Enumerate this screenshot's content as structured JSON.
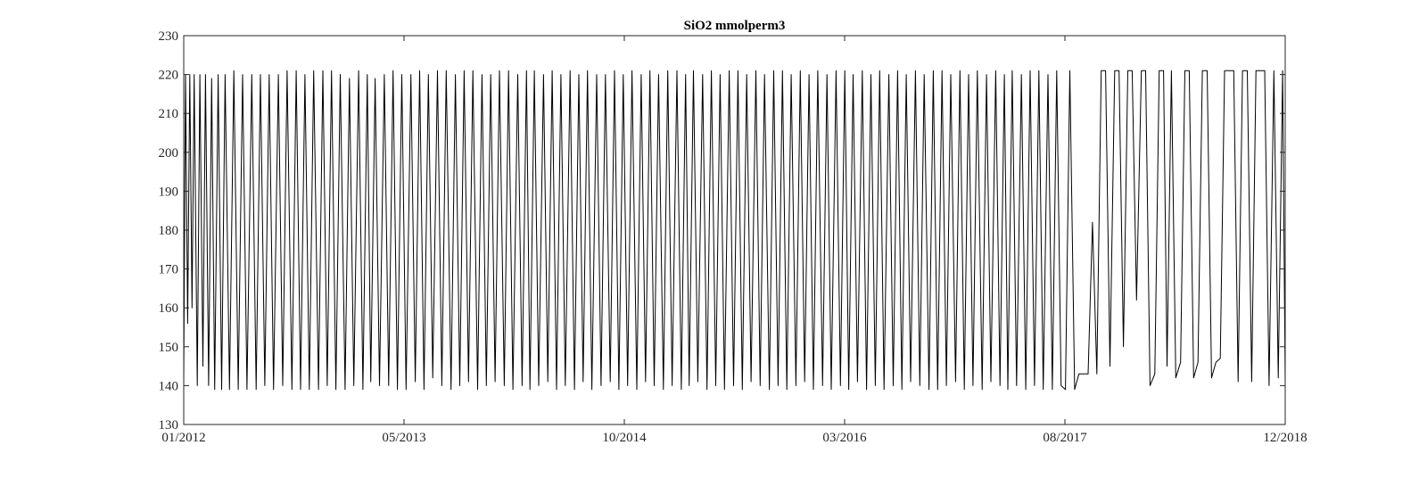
{
  "chart_data": {
    "type": "line",
    "title": "SiO2 mmolperm3",
    "xlabel": "",
    "ylabel": "",
    "x_ticks": [
      "01/2012",
      "05/2013",
      "10/2014",
      "03/2016",
      "08/2017",
      "12/2018"
    ],
    "xlim": [
      "2012-01-01",
      "2018-12-01"
    ],
    "ylim": [
      130,
      230
    ],
    "y_ticks": [
      130,
      140,
      150,
      160,
      170,
      180,
      190,
      200,
      210,
      220,
      230
    ],
    "grid": false,
    "series": [
      {
        "color": "#000000",
        "x": [
          "2012-01-01",
          "2012-01-05",
          "2012-01-10",
          "2012-01-15",
          "2012-01-20",
          "2012-01-25",
          "2012-02-01",
          "2012-02-07",
          "2012-02-14",
          "2012-02-20",
          "2012-02-27",
          "2012-03-05",
          "2012-03-12",
          "2012-03-20",
          "2012-03-28",
          "2012-04-05",
          "2012-04-15",
          "2012-04-25",
          "2012-05-05",
          "2012-05-15",
          "2012-05-25",
          "2012-06-05",
          "2012-06-15",
          "2012-06-25",
          "2012-07-05",
          "2012-07-15",
          "2012-07-25",
          "2012-08-05",
          "2012-08-15",
          "2012-08-25",
          "2012-09-05",
          "2012-09-15",
          "2012-09-25",
          "2012-10-05",
          "2012-10-15",
          "2012-10-25",
          "2012-11-05",
          "2012-11-15",
          "2012-11-25",
          "2012-12-05",
          "2012-12-15",
          "2012-12-25",
          "2013-01-05",
          "2013-01-15",
          "2013-01-25",
          "2013-02-05",
          "2013-02-15",
          "2013-02-25",
          "2013-03-05",
          "2013-03-15",
          "2013-03-25",
          "2013-04-05",
          "2013-04-15",
          "2013-04-25",
          "2013-05-05",
          "2013-05-15",
          "2013-05-25",
          "2013-06-05",
          "2013-06-15",
          "2013-06-25",
          "2013-07-05",
          "2013-07-15",
          "2013-07-25",
          "2013-08-05",
          "2013-08-15",
          "2013-08-25",
          "2013-09-05",
          "2013-09-15",
          "2013-09-25",
          "2013-10-05",
          "2013-10-15",
          "2013-10-25",
          "2013-11-05",
          "2013-11-15",
          "2013-11-25",
          "2013-12-05",
          "2013-12-15",
          "2013-12-25",
          "2014-01-05",
          "2014-01-15",
          "2014-01-25",
          "2014-02-05",
          "2014-02-15",
          "2014-02-25",
          "2014-03-05",
          "2014-03-15",
          "2014-03-25",
          "2014-04-05",
          "2014-04-15",
          "2014-04-25",
          "2014-05-05",
          "2014-05-15",
          "2014-05-25",
          "2014-06-05",
          "2014-06-15",
          "2014-06-25",
          "2014-07-05",
          "2014-07-15",
          "2014-07-25",
          "2014-08-05",
          "2014-08-15",
          "2014-08-25",
          "2014-09-05",
          "2014-09-15",
          "2014-09-25",
          "2014-10-05",
          "2014-10-15",
          "2014-10-25",
          "2014-11-05",
          "2014-11-15",
          "2014-11-25",
          "2014-12-05",
          "2014-12-15",
          "2014-12-25",
          "2015-01-05",
          "2015-01-15",
          "2015-01-25",
          "2015-02-05",
          "2015-02-15",
          "2015-02-25",
          "2015-03-05",
          "2015-03-15",
          "2015-03-25",
          "2015-04-05",
          "2015-04-15",
          "2015-04-25",
          "2015-05-05",
          "2015-05-15",
          "2015-05-25",
          "2015-06-05",
          "2015-06-15",
          "2015-06-25",
          "2015-07-05",
          "2015-07-15",
          "2015-07-25",
          "2015-08-05",
          "2015-08-15",
          "2015-08-25",
          "2015-09-05",
          "2015-09-15",
          "2015-09-25",
          "2015-10-05",
          "2015-10-15",
          "2015-10-25",
          "2015-11-05",
          "2015-11-15",
          "2015-11-25",
          "2015-12-05",
          "2015-12-15",
          "2015-12-25",
          "2016-01-05",
          "2016-01-15",
          "2016-01-25",
          "2016-02-05",
          "2016-02-15",
          "2016-02-25",
          "2016-03-05",
          "2016-03-15",
          "2016-03-25",
          "2016-04-05",
          "2016-04-15",
          "2016-04-25",
          "2016-05-05",
          "2016-05-15",
          "2016-05-25",
          "2016-06-05",
          "2016-06-15",
          "2016-06-25",
          "2016-07-05",
          "2016-07-15",
          "2016-07-25",
          "2016-08-05",
          "2016-08-15",
          "2016-08-25",
          "2016-09-05",
          "2016-09-15",
          "2016-09-25",
          "2016-10-05",
          "2016-10-15",
          "2016-10-25",
          "2016-11-05",
          "2016-11-15",
          "2016-11-25",
          "2016-12-05",
          "2016-12-15",
          "2016-12-25",
          "2017-01-05",
          "2017-01-15",
          "2017-01-25",
          "2017-02-05",
          "2017-02-15",
          "2017-02-25",
          "2017-03-05",
          "2017-03-15",
          "2017-03-25",
          "2017-04-05",
          "2017-04-15",
          "2017-04-25",
          "2017-05-05",
          "2017-05-15",
          "2017-05-25",
          "2017-06-05",
          "2017-06-15",
          "2017-06-25",
          "2017-07-05",
          "2017-07-15",
          "2017-07-25",
          "2017-08-05",
          "2017-08-15",
          "2017-08-25",
          "2017-09-05",
          "2017-09-15",
          "2017-09-25",
          "2017-10-05",
          "2017-10-15",
          "2017-10-25",
          "2017-11-05",
          "2017-11-15",
          "2017-11-25",
          "2017-12-05",
          "2017-12-15",
          "2017-12-25",
          "2018-01-05",
          "2018-01-15",
          "2018-01-25",
          "2018-02-05",
          "2018-02-15",
          "2018-02-25",
          "2018-03-05",
          "2018-03-15",
          "2018-03-25",
          "2018-04-05",
          "2018-04-15",
          "2018-04-25",
          "2018-05-05",
          "2018-05-15",
          "2018-05-25",
          "2018-06-05",
          "2018-06-15",
          "2018-06-25",
          "2018-07-05",
          "2018-07-15",
          "2018-07-25",
          "2018-08-05",
          "2018-08-15",
          "2018-08-25",
          "2018-09-05",
          "2018-09-15",
          "2018-09-25",
          "2018-10-05",
          "2018-10-15",
          "2018-10-25",
          "2018-11-05",
          "2018-11-15",
          "2018-11-25",
          "2018-12-01"
        ],
        "y": [
          140,
          220,
          156,
          220,
          160,
          220,
          140,
          220,
          145,
          220,
          140,
          219,
          139,
          220,
          139,
          220,
          139,
          221,
          139,
          220,
          139,
          220,
          139,
          220,
          140,
          220,
          139,
          220,
          140,
          221,
          139,
          221,
          139,
          220,
          139,
          221,
          139,
          221,
          140,
          221,
          139,
          220,
          139,
          219,
          140,
          221,
          139,
          220,
          141,
          219,
          140,
          220,
          140,
          221,
          139,
          220,
          139,
          220,
          141,
          221,
          139,
          220,
          142,
          221,
          140,
          221,
          139,
          220,
          140,
          221,
          141,
          221,
          139,
          220,
          140,
          220,
          141,
          221,
          140,
          221,
          139,
          220,
          140,
          221,
          139,
          221,
          140,
          220,
          141,
          221,
          139,
          220,
          140,
          221,
          139,
          220,
          141,
          221,
          139,
          220,
          140,
          220,
          141,
          221,
          139,
          220,
          140,
          221,
          139,
          220,
          141,
          221,
          140,
          220,
          139,
          221,
          140,
          221,
          139,
          220,
          140,
          221,
          141,
          220,
          139,
          221,
          140,
          220,
          139,
          221,
          140,
          221,
          139,
          220,
          141,
          221,
          140,
          220,
          139,
          221,
          140,
          221,
          139,
          220,
          140,
          221,
          141,
          220,
          139,
          221,
          140,
          220,
          139,
          221,
          140,
          221,
          139,
          220,
          141,
          221,
          139,
          220,
          140,
          221,
          139,
          220,
          140,
          221,
          139,
          220,
          141,
          221,
          140,
          220,
          139,
          221,
          139,
          221,
          140,
          220,
          141,
          221,
          139,
          220,
          140,
          221,
          139,
          220,
          141,
          221,
          140,
          220,
          139,
          221,
          140,
          220,
          139,
          221,
          140,
          221,
          139,
          220,
          139,
          221,
          140,
          139,
          221,
          139,
          143,
          143,
          143,
          182,
          143,
          221,
          221,
          145,
          221,
          221,
          150,
          221,
          221,
          162,
          221,
          221,
          140,
          143,
          221,
          221,
          145,
          221,
          142,
          146,
          221,
          221,
          142,
          146,
          221,
          221,
          142,
          146,
          147,
          221,
          221,
          221,
          141,
          221,
          221,
          141,
          221,
          221,
          221,
          140,
          221,
          142,
          221,
          140
        ]
      }
    ]
  }
}
